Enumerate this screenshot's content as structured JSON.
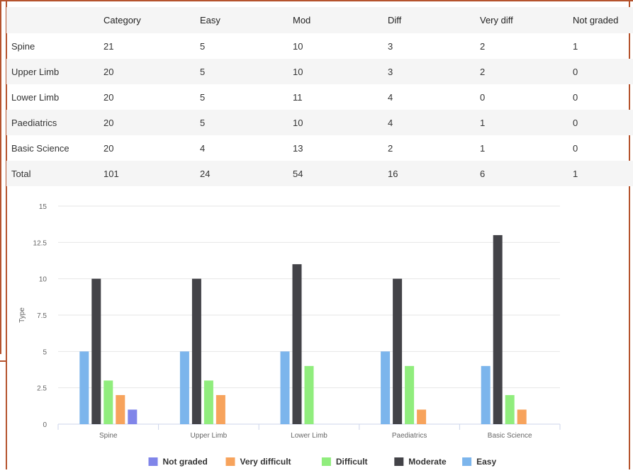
{
  "table": {
    "headers": [
      "",
      "Category",
      "Easy",
      "Mod",
      "Diff",
      "Very diff",
      "Not graded"
    ],
    "rows": [
      [
        "Spine",
        "21",
        "5",
        "10",
        "3",
        "2",
        "1"
      ],
      [
        "Upper Limb",
        "20",
        "5",
        "10",
        "3",
        "2",
        "0"
      ],
      [
        "Lower Limb",
        "20",
        "5",
        "11",
        "4",
        "0",
        "0"
      ],
      [
        "Paediatrics",
        "20",
        "5",
        "10",
        "4",
        "1",
        "0"
      ],
      [
        "Basic Science",
        "20",
        "4",
        "13",
        "2",
        "1",
        "0"
      ],
      [
        "Total",
        "101",
        "24",
        "54",
        "16",
        "6",
        "1"
      ]
    ]
  },
  "chart_data": {
    "type": "bar",
    "ylabel": "Type",
    "xlabel": "",
    "ylim": [
      0,
      15
    ],
    "yticks": [
      0,
      2.5,
      5,
      7.5,
      10,
      12.5,
      15
    ],
    "categories": [
      "Spine",
      "Upper Limb",
      "Lower Limb",
      "Paediatrics",
      "Basic Science"
    ],
    "series": [
      {
        "name": "Easy",
        "color": "#7cb5ec",
        "values": [
          5,
          5,
          5,
          5,
          4
        ]
      },
      {
        "name": "Moderate",
        "color": "#434348",
        "values": [
          10,
          10,
          11,
          10,
          13
        ]
      },
      {
        "name": "Difficult",
        "color": "#90ed7d",
        "values": [
          3,
          3,
          4,
          4,
          2
        ]
      },
      {
        "name": "Very difficult",
        "color": "#f7a35c",
        "values": [
          2,
          2,
          0,
          1,
          1
        ]
      },
      {
        "name": "Not graded",
        "color": "#8085e9",
        "values": [
          1,
          0,
          0,
          0,
          0
        ]
      }
    ],
    "legend_order": [
      "Not graded",
      "Very difficult",
      "Difficult",
      "Moderate",
      "Easy"
    ],
    "legend": "bottom",
    "grid": true
  }
}
